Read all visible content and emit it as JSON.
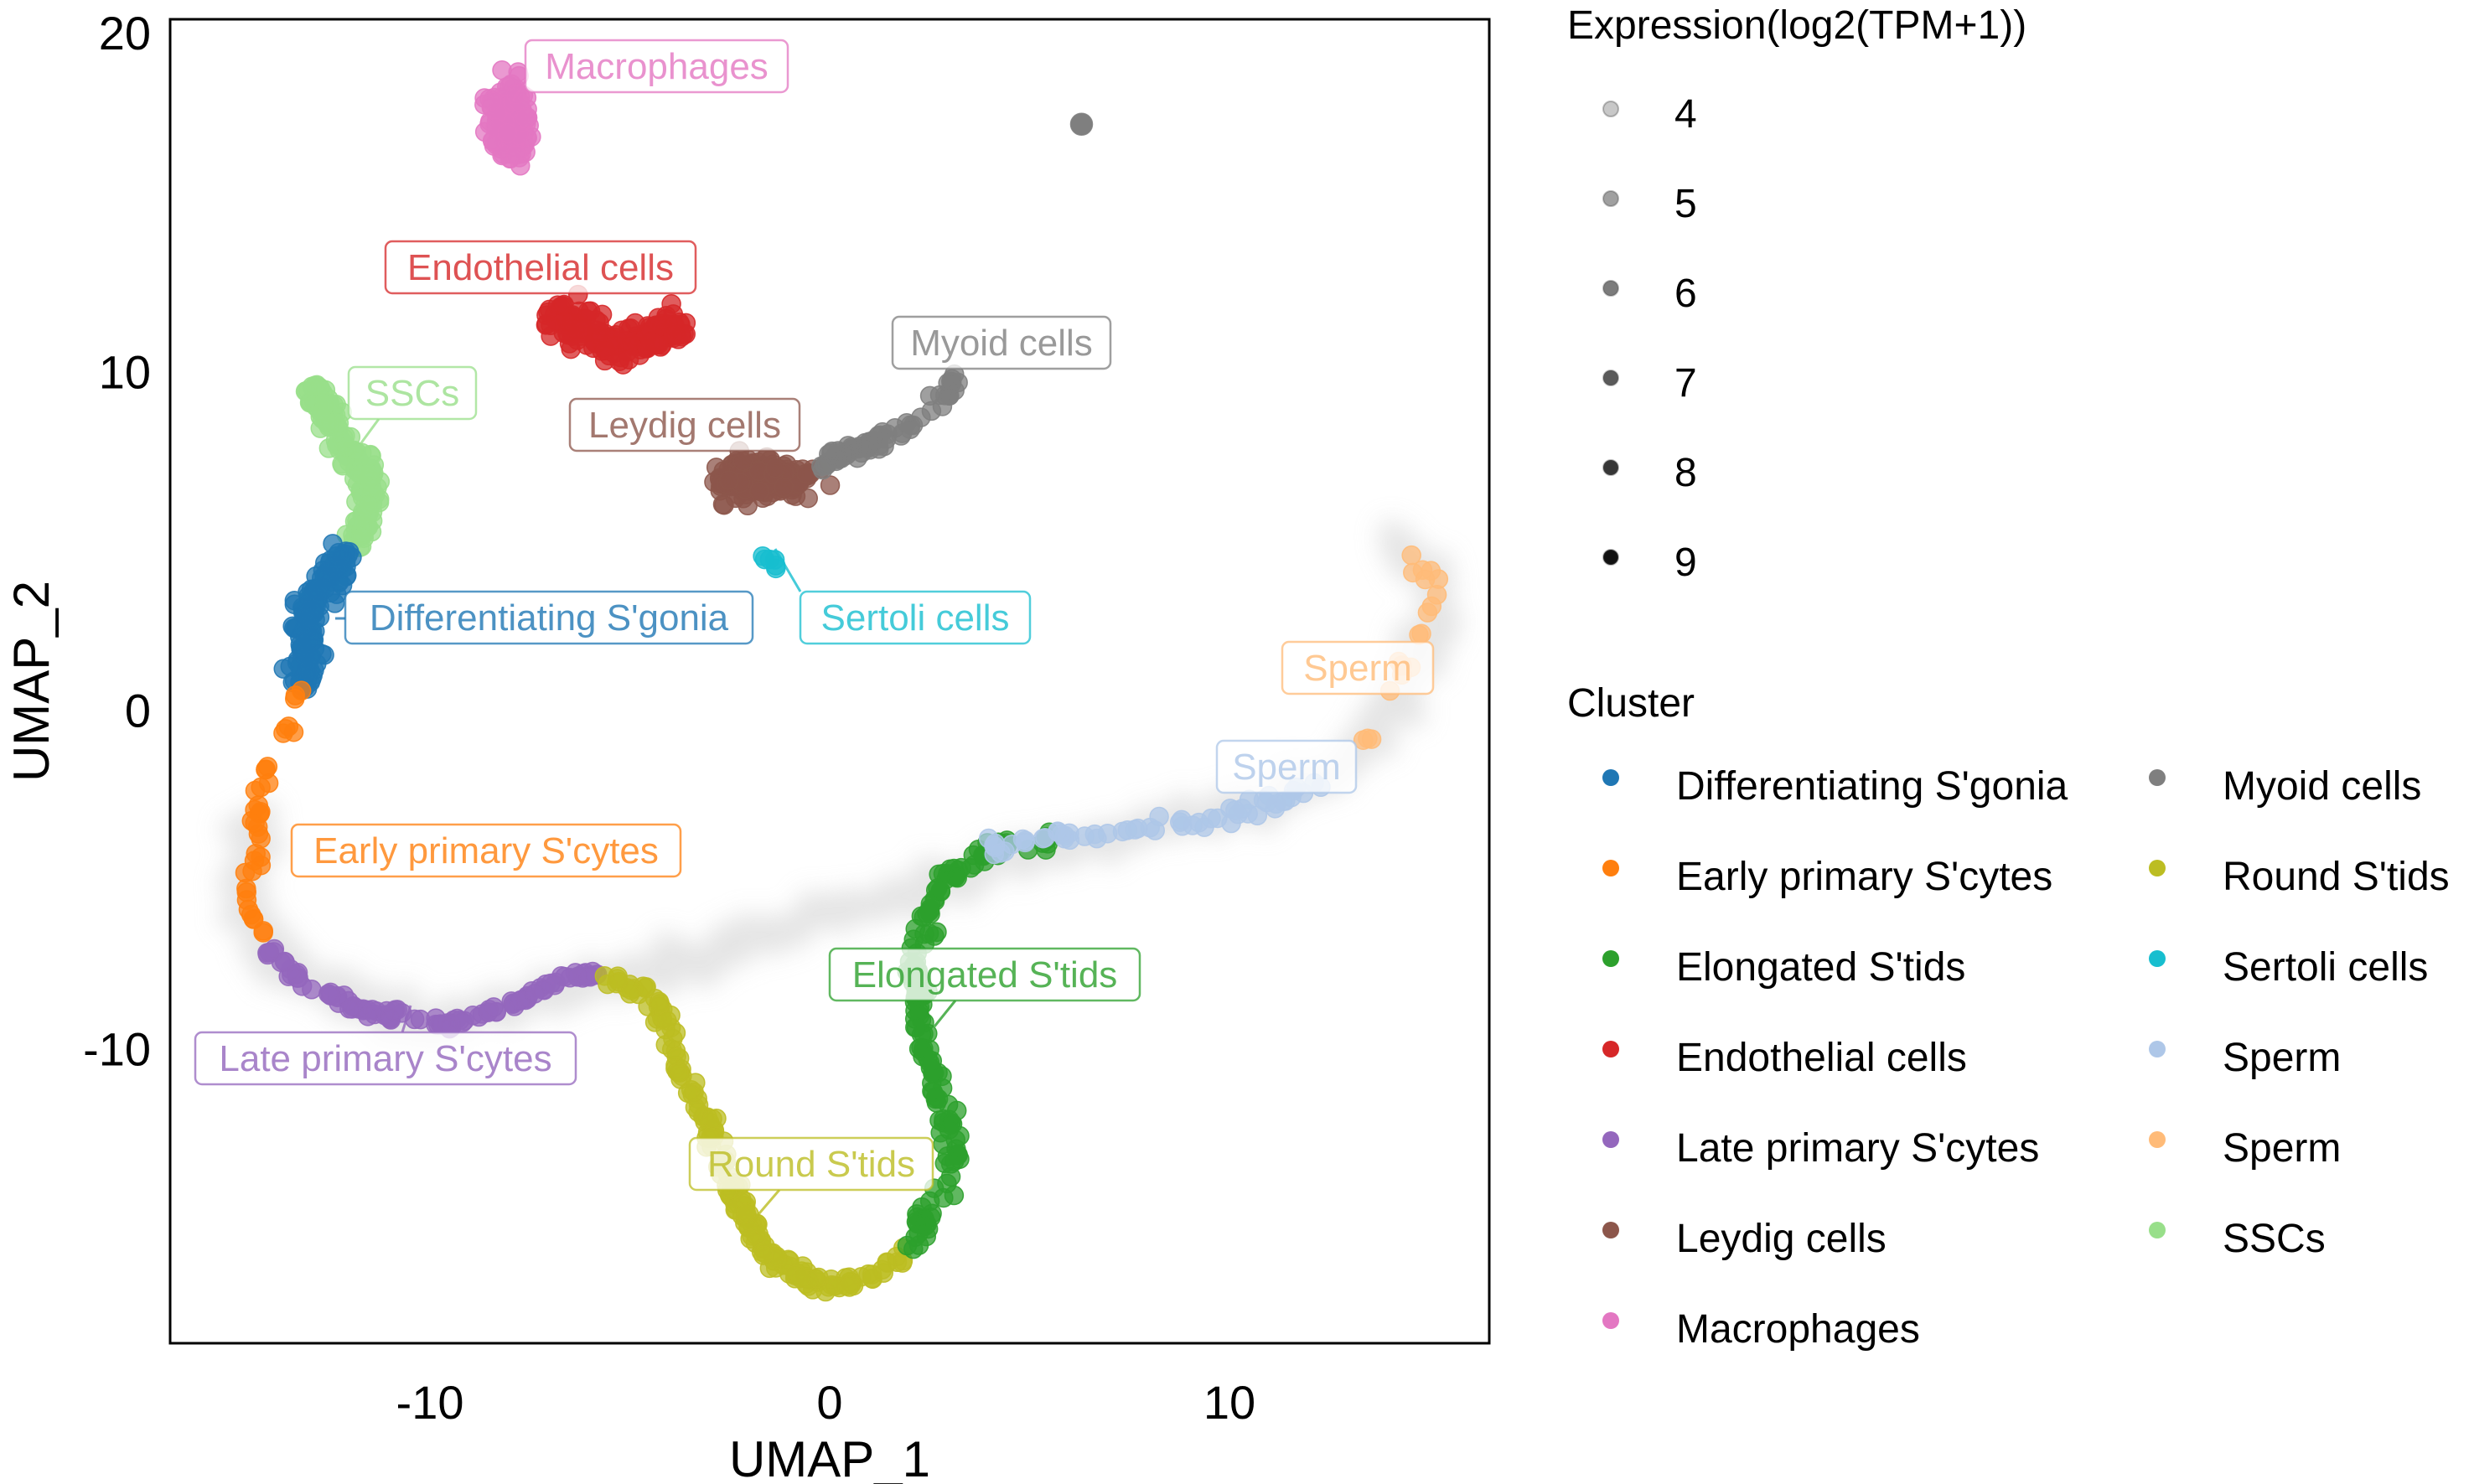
{
  "chart_data": {
    "type": "scatter",
    "title": "",
    "xlabel": "UMAP_1",
    "ylabel": "UMAP_2",
    "xlim": [
      -16.5,
      16.5
    ],
    "ylim": [
      -18.7,
      20.4
    ],
    "xticks": [
      -10,
      0,
      10
    ],
    "yticks": [
      -10,
      0,
      10,
      20
    ],
    "xtick_labels": [
      "-10",
      "0",
      "10"
    ],
    "ytick_labels": [
      "-10",
      "0",
      "10",
      "20"
    ],
    "grid": false,
    "legends": [
      {
        "title": "Expression(log2(TPM+1))",
        "placement": "top-right",
        "type": "shade",
        "entries": [
          {
            "label": "4",
            "value": 4,
            "color": "#c8c8c8"
          },
          {
            "label": "5",
            "value": 5,
            "color": "#a0a0a0"
          },
          {
            "label": "6",
            "value": 6,
            "color": "#7c7c7c"
          },
          {
            "label": "7",
            "value": 7,
            "color": "#5a5a5a"
          },
          {
            "label": "8",
            "value": 8,
            "color": "#363636"
          },
          {
            "label": "9",
            "value": 9,
            "color": "#111111"
          }
        ]
      },
      {
        "title": "Cluster",
        "placement": "right",
        "type": "color",
        "columns": 2,
        "entries": [
          {
            "label": "Differentiating S'gonia",
            "color": "#1f77b4"
          },
          {
            "label": "Early primary S'cytes",
            "color": "#ff7f0e"
          },
          {
            "label": "Elongated S'tids",
            "color": "#2ca02c"
          },
          {
            "label": "Endothelial cells",
            "color": "#d62728"
          },
          {
            "label": "Late primary S'cytes",
            "color": "#9467bd"
          },
          {
            "label": "Leydig cells",
            "color": "#8c564b"
          },
          {
            "label": "Macrophages",
            "color": "#e377c2"
          },
          {
            "label": "Myoid cells",
            "color": "#7f7f7f"
          },
          {
            "label": "Round S'tids",
            "color": "#bcbd22"
          },
          {
            "label": "Sertoli cells",
            "color": "#17becf"
          },
          {
            "label": "Sperm",
            "color": "#aec7e8"
          },
          {
            "label": "Sperm",
            "color": "#ffbb78"
          },
          {
            "label": "SSCs",
            "color": "#98df8a"
          }
        ]
      }
    ],
    "clusters": [
      {
        "name": "Macrophages",
        "color": "#e377c2",
        "shape": "blob",
        "center": [
          -8.0,
          17.4
        ],
        "spread": [
          0.45,
          1.0
        ],
        "n": 160
      },
      {
        "name": "Endothelial cells",
        "color": "#d62728",
        "shape": "path",
        "path": [
          [
            -6.8,
            12.0
          ],
          [
            -5.9,
            10.9
          ],
          [
            -4.9,
            10.7
          ],
          [
            -3.6,
            11.5
          ]
        ],
        "width": 0.45,
        "n": 170
      },
      {
        "name": "Leydig cells",
        "color": "#8c564b",
        "shape": "blob",
        "center": [
          -1.7,
          6.8
        ],
        "spread": [
          1.1,
          0.55
        ],
        "n": 200
      },
      {
        "name": "Myoid cells",
        "color": "#7f7f7f",
        "shape": "path",
        "path": [
          [
            -0.3,
            7.2
          ],
          [
            1.3,
            8.0
          ],
          [
            2.6,
            9.0
          ],
          [
            3.3,
            9.9
          ]
        ],
        "width": 0.2,
        "n": 70
      },
      {
        "name": "Myoid cells (outlier)",
        "color": "#7f7f7f",
        "shape": "point",
        "center": [
          6.3,
          17.3
        ]
      },
      {
        "name": "Sertoli cells",
        "color": "#17becf",
        "shape": "path",
        "path": [
          [
            -1.7,
            4.7
          ],
          [
            -1.3,
            4.2
          ]
        ],
        "width": 0.1,
        "n": 6
      },
      {
        "name": "SSCs",
        "color": "#98df8a",
        "shape": "path",
        "path": [
          [
            -13.0,
            9.6
          ],
          [
            -12.2,
            8.0
          ],
          [
            -11.5,
            6.8
          ],
          [
            -11.6,
            5.6
          ],
          [
            -12.0,
            4.8
          ]
        ],
        "width": 0.28,
        "n": 170
      },
      {
        "name": "Differentiating S'gonia",
        "color": "#1f77b4",
        "shape": "path",
        "path": [
          [
            -12.1,
            4.8
          ],
          [
            -12.6,
            3.6
          ],
          [
            -13.1,
            2.8
          ],
          [
            -13.0,
            1.8
          ],
          [
            -13.3,
            0.6
          ]
        ],
        "width": 0.35,
        "n": 150
      },
      {
        "name": "Early primary S'cytes",
        "color": "#ff7f0e",
        "shape": "path",
        "path": [
          [
            -13.3,
            0.6
          ],
          [
            -13.7,
            -1.0
          ],
          [
            -14.3,
            -2.2
          ],
          [
            -14.3,
            -4.3
          ],
          [
            -14.6,
            -5.6
          ],
          [
            -14.2,
            -6.6
          ]
        ],
        "width": 0.15,
        "n": 38
      },
      {
        "name": "Late primary S'cytes",
        "color": "#9467bd",
        "shape": "path",
        "path": [
          [
            -14.0,
            -7.1
          ],
          [
            -13.0,
            -8.2
          ],
          [
            -11.6,
            -8.9
          ],
          [
            -9.6,
            -9.3
          ],
          [
            -7.8,
            -8.6
          ],
          [
            -6.6,
            -7.9
          ],
          [
            -5.6,
            -7.8
          ]
        ],
        "width": 0.12,
        "n": 110
      },
      {
        "name": "Round S'tids",
        "color": "#bcbd22",
        "shape": "path",
        "path": [
          [
            -5.6,
            -7.8
          ],
          [
            -4.3,
            -8.6
          ],
          [
            -3.7,
            -10.6
          ],
          [
            -3.0,
            -12.3
          ],
          [
            -2.3,
            -14.6
          ],
          [
            -1.4,
            -16.2
          ],
          [
            -0.2,
            -17.0
          ],
          [
            1.0,
            -16.8
          ],
          [
            2.0,
            -16.0
          ]
        ],
        "width": 0.2,
        "n": 190
      },
      {
        "name": "Elongated S'tids",
        "color": "#2ca02c",
        "shape": "path",
        "path": [
          [
            2.0,
            -16.0
          ],
          [
            2.6,
            -14.6
          ],
          [
            3.1,
            -13.2
          ],
          [
            2.8,
            -11.3
          ],
          [
            2.2,
            -9.6
          ],
          [
            2.2,
            -7.4
          ],
          [
            2.5,
            -5.6
          ],
          [
            3.3,
            -4.7
          ],
          [
            4.4,
            -4.0
          ],
          [
            5.6,
            -3.8
          ]
        ],
        "width": 0.25,
        "n": 170
      },
      {
        "name": "Sperm",
        "color": "#aec7e8",
        "shape": "path",
        "path": [
          [
            4.0,
            -4.0
          ],
          [
            5.6,
            -3.8
          ],
          [
            7.4,
            -3.6
          ],
          [
            9.4,
            -3.3
          ],
          [
            11.2,
            -2.7
          ],
          [
            12.3,
            -2.1
          ]
        ],
        "width": 0.2,
        "n": 60
      },
      {
        "name": "Sperm",
        "color": "#ffbb78",
        "shape": "path",
        "path": [
          [
            13.1,
            -1.3
          ],
          [
            13.6,
            -0.3
          ],
          [
            14.3,
            1.0
          ],
          [
            14.9,
            2.3
          ],
          [
            15.1,
            3.6
          ],
          [
            14.5,
            4.6
          ]
        ],
        "width": 0.25,
        "n": 20
      }
    ],
    "background_trajectory": [
      [
        -14.3,
        -3.0
      ],
      [
        -14.8,
        -5.8
      ],
      [
        -13.6,
        -7.8
      ],
      [
        -10.0,
        -9.3
      ],
      [
        8.0,
        -3.5
      ],
      [
        12.0,
        -2.4
      ],
      [
        13.5,
        -0.8
      ],
      [
        14.5,
        1.0
      ],
      [
        15.2,
        3.0
      ],
      [
        14.8,
        4.8
      ],
      [
        14.0,
        5.0
      ]
    ],
    "annotations": [
      {
        "text": "Macrophages",
        "color": "#e377c2"
      },
      {
        "text": "Endothelial cells",
        "color": "#d62728"
      },
      {
        "text": "Myoid cells",
        "color": "#7f7f7f"
      },
      {
        "text": "SSCs",
        "color": "#98df8a"
      },
      {
        "text": "Leydig cells",
        "color": "#8c564b"
      },
      {
        "text": "Differentiating S'gonia",
        "color": "#1f77b4"
      },
      {
        "text": "Sertoli cells",
        "color": "#17becf"
      },
      {
        "text": "Sperm",
        "color": "#ffbb78"
      },
      {
        "text": "Sperm",
        "color": "#aec7e8"
      },
      {
        "text": "Early primary S'cytes",
        "color": "#ff7f0e"
      },
      {
        "text": "Elongated S'tids",
        "color": "#2ca02c"
      },
      {
        "text": "Late primary S'cytes",
        "color": "#9467bd"
      },
      {
        "text": "Round S'tids",
        "color": "#bcbd22"
      }
    ]
  }
}
